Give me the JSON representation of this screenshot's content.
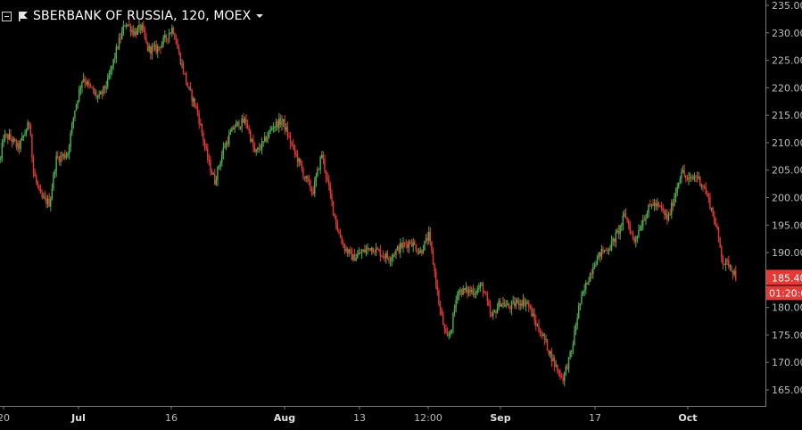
{
  "header": {
    "title": "SBERBANK OF RUSSIA, 120, MOEX"
  },
  "price_axis": {
    "ticks": [
      "235.00",
      "230.00",
      "225.00",
      "220.00",
      "215.00",
      "210.00",
      "205.00",
      "200.00",
      "195.00",
      "190.00",
      "180.00",
      "175.00",
      "170.00",
      "165.00"
    ],
    "last_price_label": "185.40",
    "countdown_label": "01:20:0",
    "badge_color": "#e53935"
  },
  "time_axis": {
    "labels": [
      "20",
      "Jul",
      "16",
      "Aug",
      "13",
      "12:00",
      "Sep",
      "17",
      "Oct"
    ]
  },
  "colors": {
    "up": "#4caf50",
    "down": "#e53935",
    "background": "#000000",
    "axis_text": "#bdbdbd"
  },
  "chart_data": {
    "type": "candlestick",
    "title": "SBERBANK OF RUSSIA, 120, MOEX",
    "ylim": [
      163,
      236
    ],
    "x_tick_labels": [
      "20",
      "Jul",
      "16",
      "Aug",
      "13",
      "12:00",
      "Sep",
      "17",
      "Oct"
    ],
    "last_price": 185.4,
    "close_path": [
      [
        0,
        207
      ],
      [
        3,
        211
      ],
      [
        10,
        211
      ],
      [
        20,
        209
      ],
      [
        33,
        214
      ],
      [
        36,
        205
      ],
      [
        45,
        200
      ],
      [
        55,
        199
      ],
      [
        62,
        207
      ],
      [
        75,
        208
      ],
      [
        83,
        216
      ],
      [
        92,
        222
      ],
      [
        100,
        220
      ],
      [
        110,
        218
      ],
      [
        120,
        221
      ],
      [
        130,
        227
      ],
      [
        140,
        232
      ],
      [
        150,
        230
      ],
      [
        158,
        231
      ],
      [
        165,
        227
      ],
      [
        175,
        227
      ],
      [
        185,
        229
      ],
      [
        193,
        231
      ],
      [
        200,
        226
      ],
      [
        210,
        220
      ],
      [
        220,
        216
      ],
      [
        232,
        207
      ],
      [
        240,
        203
      ],
      [
        250,
        209
      ],
      [
        262,
        213
      ],
      [
        275,
        214
      ],
      [
        285,
        208
      ],
      [
        295,
        210
      ],
      [
        305,
        213
      ],
      [
        316,
        214
      ],
      [
        325,
        210
      ],
      [
        333,
        207
      ],
      [
        340,
        204
      ],
      [
        350,
        201
      ],
      [
        360,
        208
      ],
      [
        370,
        200
      ],
      [
        378,
        194
      ],
      [
        385,
        191
      ],
      [
        395,
        189
      ],
      [
        405,
        190
      ],
      [
        415,
        191
      ],
      [
        425,
        190
      ],
      [
        435,
        189
      ],
      [
        448,
        191
      ],
      [
        460,
        192
      ],
      [
        470,
        190
      ],
      [
        480,
        193
      ],
      [
        485,
        188
      ],
      [
        492,
        180
      ],
      [
        500,
        174
      ],
      [
        505,
        176
      ],
      [
        512,
        183
      ],
      [
        522,
        183
      ],
      [
        532,
        183
      ],
      [
        540,
        184
      ],
      [
        550,
        178
      ],
      [
        560,
        181
      ],
      [
        570,
        180
      ],
      [
        580,
        181
      ],
      [
        590,
        181
      ],
      [
        600,
        177
      ],
      [
        610,
        174
      ],
      [
        620,
        170
      ],
      [
        630,
        167
      ],
      [
        640,
        172
      ],
      [
        648,
        180
      ],
      [
        656,
        184
      ],
      [
        665,
        188
      ],
      [
        673,
        190
      ],
      [
        683,
        191
      ],
      [
        693,
        194
      ],
      [
        700,
        197
      ],
      [
        710,
        192
      ],
      [
        720,
        196
      ],
      [
        730,
        199
      ],
      [
        740,
        198
      ],
      [
        748,
        196
      ],
      [
        755,
        200
      ],
      [
        763,
        205
      ],
      [
        770,
        203
      ],
      [
        780,
        204
      ],
      [
        788,
        202
      ],
      [
        795,
        199
      ],
      [
        803,
        194
      ],
      [
        810,
        188
      ],
      [
        817,
        188
      ],
      [
        825,
        185.4
      ]
    ]
  }
}
